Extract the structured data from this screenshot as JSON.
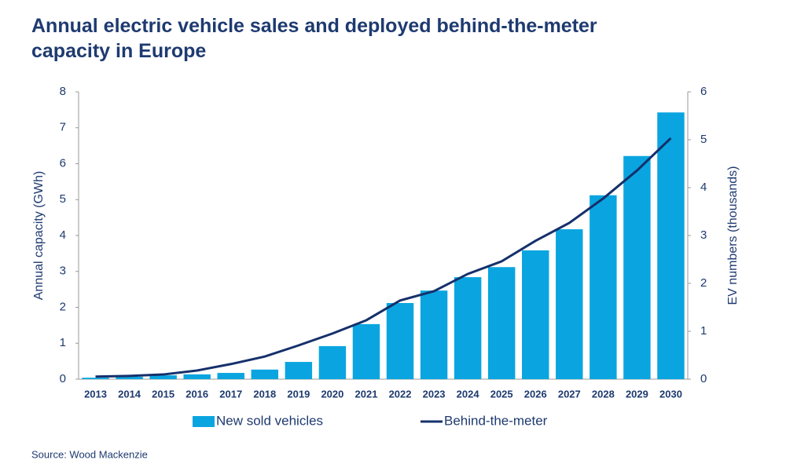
{
  "chart_data": {
    "type": "bar-line",
    "title": "Annual electric vehicle sales and deployed behind-the-meter capacity in Europe",
    "ylabel": "Annual capacity (GWh)",
    "y2label": "EV numbers (thousands)",
    "source": "Source: Wood Mackenzie",
    "categories": [
      "2013",
      "2014",
      "2015",
      "2016",
      "2017",
      "2018",
      "2019",
      "2020",
      "2021",
      "2022",
      "2023",
      "2024",
      "2025",
      "2026",
      "2027",
      "2028",
      "2029",
      "2030"
    ],
    "ylim": [
      0,
      8
    ],
    "yticks": [
      0,
      1,
      2,
      3,
      4,
      5,
      6,
      7,
      8
    ],
    "y2lim": [
      0,
      6
    ],
    "y2ticks": [
      0,
      1,
      2,
      3,
      4,
      5,
      6
    ],
    "series": [
      {
        "name": "New sold vehicles",
        "type": "bar",
        "axis": "y2",
        "color": "#0aa5e0",
        "values": [
          0.03,
          0.05,
          0.08,
          0.1,
          0.13,
          0.2,
          0.36,
          0.69,
          1.15,
          1.59,
          1.85,
          2.13,
          2.34,
          2.69,
          3.13,
          3.84,
          4.66,
          5.57
        ]
      },
      {
        "name": "Behind-the-meter",
        "type": "line",
        "axis": "y",
        "color": "#15306b",
        "values": [
          0.07,
          0.09,
          0.13,
          0.24,
          0.42,
          0.63,
          0.94,
          1.27,
          1.64,
          2.19,
          2.45,
          2.93,
          3.28,
          3.85,
          4.35,
          5.03,
          5.81,
          6.71
        ]
      }
    ]
  }
}
